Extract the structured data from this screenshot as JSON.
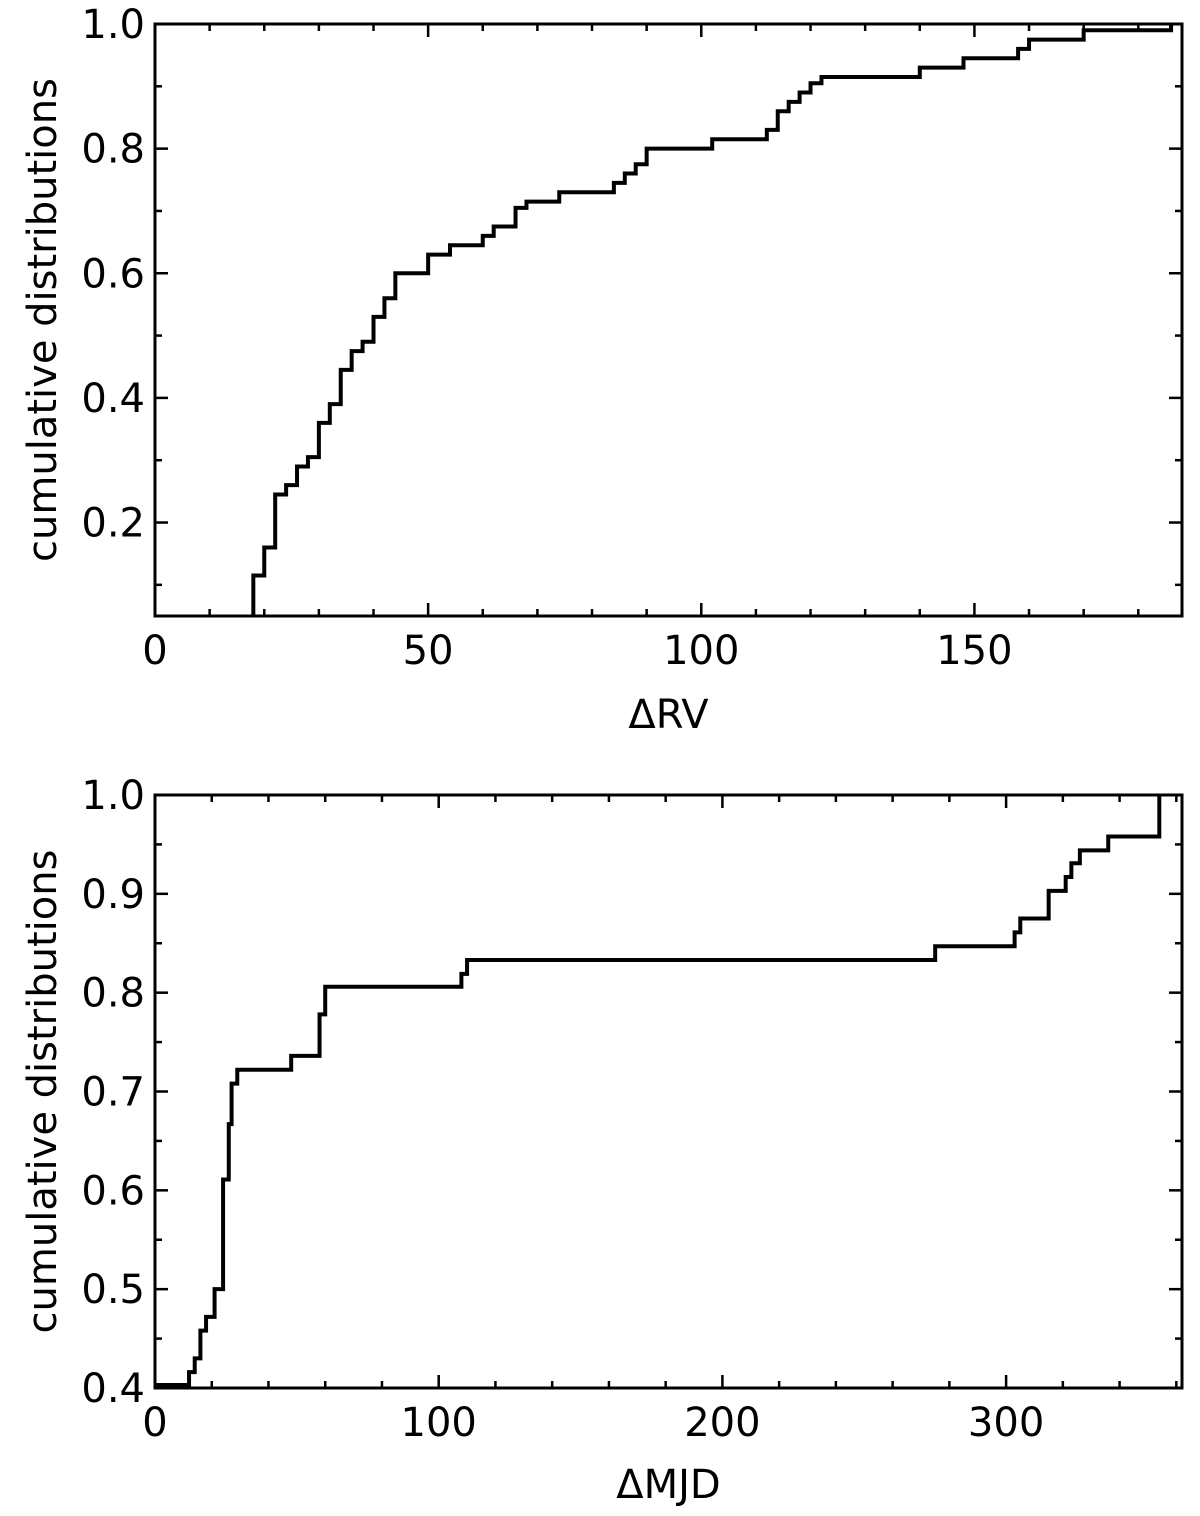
{
  "chart_data": [
    {
      "type": "line",
      "step": true,
      "title": "",
      "xlabel": "ΔRV",
      "ylabel": "cumulative distributions",
      "xlim": [
        0,
        188
      ],
      "ylim": [
        0.05,
        1.0
      ],
      "xticks": [
        0,
        50,
        100,
        150
      ],
      "xtick_labels": [
        "0",
        "50",
        "100",
        "150"
      ],
      "x_minor_step": 10,
      "yticks": [
        0.2,
        0.4,
        0.6,
        0.8,
        1.0
      ],
      "ytick_labels": [
        "0.2",
        "0.4",
        "0.6",
        "0.8",
        "1.0"
      ],
      "y_minor_step": 0.1,
      "grid": false,
      "series": [
        {
          "color": "#000000",
          "x": [
            18,
            20,
            22,
            24,
            26,
            28,
            30,
            32,
            34,
            36,
            38,
            40,
            42,
            44,
            50,
            54,
            60,
            62,
            66,
            68,
            74,
            84,
            86,
            88,
            90,
            102,
            112,
            114,
            116,
            118,
            120,
            122,
            140,
            148,
            158,
            160,
            164,
            170,
            186
          ],
          "y": [
            0.115,
            0.16,
            0.245,
            0.26,
            0.29,
            0.305,
            0.36,
            0.39,
            0.445,
            0.475,
            0.49,
            0.53,
            0.56,
            0.6,
            0.63,
            0.645,
            0.66,
            0.675,
            0.705,
            0.715,
            0.73,
            0.745,
            0.76,
            0.775,
            0.8,
            0.815,
            0.83,
            0.86,
            0.875,
            0.89,
            0.905,
            0.915,
            0.93,
            0.945,
            0.96,
            0.975,
            0.975,
            0.99,
            1.0
          ]
        }
      ]
    },
    {
      "type": "line",
      "step": true,
      "title": "",
      "xlabel": "ΔMJD",
      "ylabel": "cumulative distributions",
      "xlim": [
        0,
        362
      ],
      "ylim": [
        0.4,
        1.0
      ],
      "xticks": [
        0,
        100,
        200,
        300
      ],
      "xtick_labels": [
        "0",
        "100",
        "200",
        "300"
      ],
      "x_minor_step": 20,
      "yticks": [
        0.4,
        0.5,
        0.6,
        0.7,
        0.8,
        0.9,
        1.0
      ],
      "ytick_labels": [
        "0.4",
        "0.5",
        "0.6",
        "0.7",
        "0.8",
        "0.9",
        "1.0"
      ],
      "y_minor_step": 0.05,
      "grid": false,
      "series": [
        {
          "color": "#000000",
          "x": [
            0,
            12,
            14,
            16,
            18,
            21,
            24,
            26,
            27,
            29,
            48,
            58,
            60,
            108,
            110,
            275,
            303,
            305,
            315,
            321,
            323,
            326,
            336,
            354
          ],
          "y": [
            0.403,
            0.416,
            0.43,
            0.458,
            0.472,
            0.5,
            0.611,
            0.667,
            0.708,
            0.722,
            0.736,
            0.778,
            0.806,
            0.819,
            0.833,
            0.847,
            0.861,
            0.875,
            0.903,
            0.917,
            0.931,
            0.944,
            0.958,
            1.0
          ]
        }
      ]
    }
  ]
}
